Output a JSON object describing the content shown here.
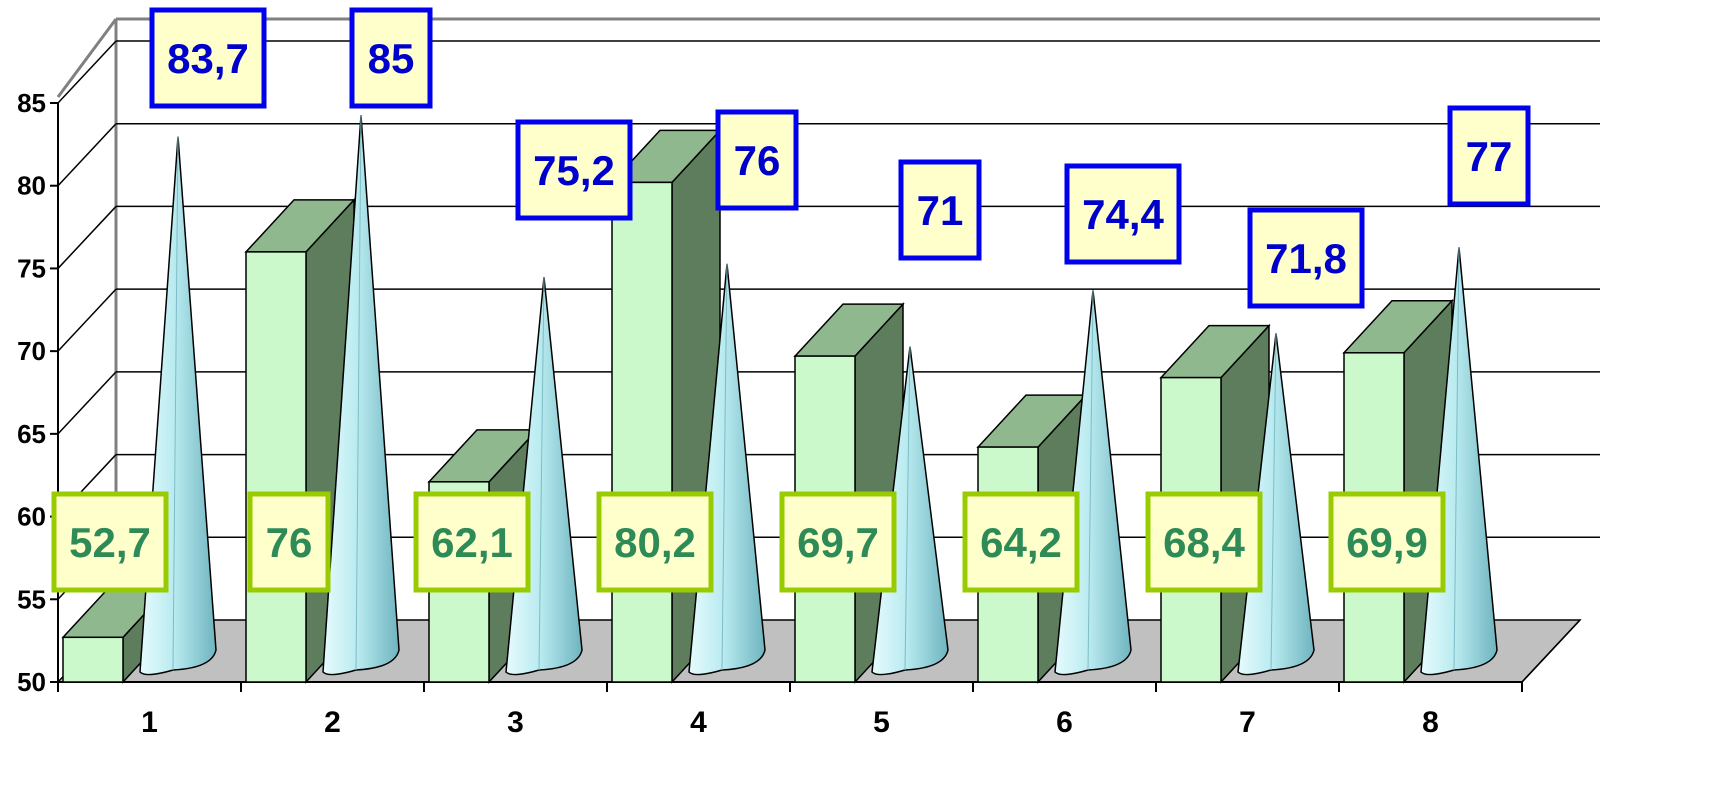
{
  "chart_data": {
    "type": "bar",
    "title": "",
    "xlabel": "",
    "ylabel": "",
    "ylim": [
      50,
      85
    ],
    "yticks": [
      "50",
      "55",
      "60",
      "65",
      "70",
      "75",
      "80",
      "85"
    ],
    "categories": [
      "1",
      "2",
      "3",
      "4",
      "5",
      "6",
      "7",
      "8"
    ],
    "grid": true,
    "legend": "none",
    "series": [
      {
        "mark": "3d-bar",
        "values": [
          52.7,
          76,
          62.1,
          80.2,
          69.7,
          64.2,
          68.4,
          69.9
        ],
        "labels": [
          "52,7",
          "76",
          "62,1",
          "80,2",
          "69,7",
          "64,2",
          "68,4",
          "69,9"
        ],
        "color": "#ccf9cc",
        "label_color": "#2e8b57",
        "label_border": "#99cc00"
      },
      {
        "mark": "cone",
        "values": [
          83.7,
          85,
          75.2,
          76,
          71,
          74.4,
          71.8,
          77
        ],
        "labels": [
          "83,7",
          "85",
          "75,2",
          "76",
          "71",
          "74,4",
          "71,8",
          "77"
        ],
        "color": "#aee0e6",
        "label_color": "#0000cc",
        "label_border": "#0000ee"
      }
    ]
  }
}
